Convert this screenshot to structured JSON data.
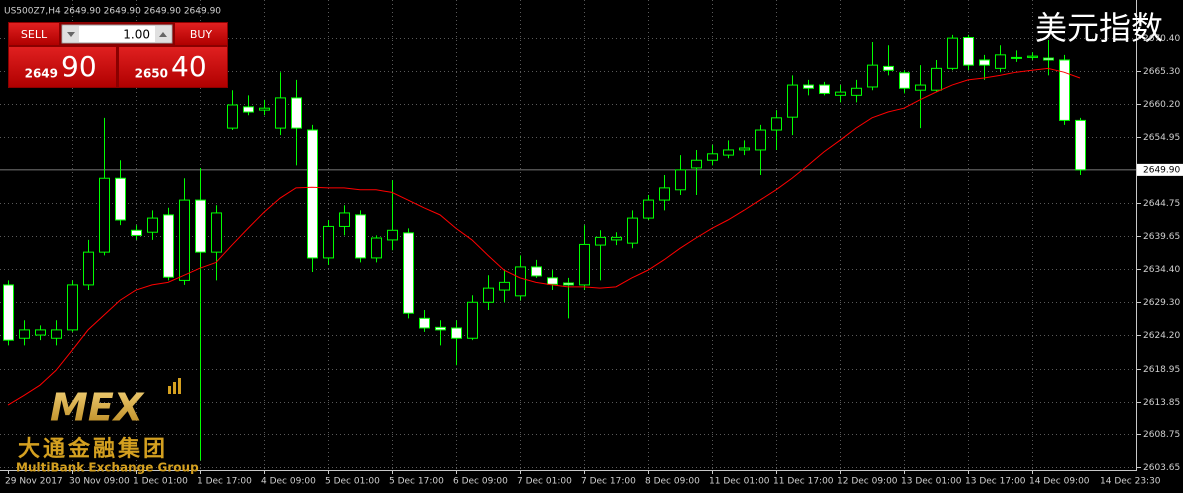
{
  "chart_data": {
    "type": "candlestick",
    "header": "US500Z7,H4  2649.90 2649.90 2649.90 2649.90",
    "title": "美元指数",
    "x": [
      "29 Nov 2017",
      null,
      null,
      null,
      "30 Nov 09:00",
      null,
      null,
      null,
      "1 Dec 01:00",
      null,
      null,
      null,
      "1 Dec 17:00",
      null,
      null,
      null,
      "4 Dec 09:00",
      null,
      null,
      null,
      "5 Dec 01:00",
      null,
      null,
      null,
      "5 Dec 17:00",
      null,
      null,
      null,
      "6 Dec 09:00",
      null,
      null,
      null,
      "7 Dec 01:00",
      null,
      null,
      null,
      "7 Dec 17:00",
      null,
      null,
      null,
      "8 Dec 09:00",
      null,
      null,
      null,
      "11 Dec 01:00",
      null,
      null,
      null,
      "11 Dec 17:00",
      null,
      null,
      null,
      "12 Dec 09:00",
      null,
      null,
      null,
      "13 Dec 01:00",
      null,
      null,
      null,
      "13 Dec 17:00",
      null,
      null,
      null,
      "14 Dec 09:00",
      null,
      null,
      null
    ],
    "current_time": "14 Dec 23:30",
    "open": [
      2632.0,
      2623.7,
      2624.2,
      2623.7,
      2625.0,
      2632.0,
      2637.1,
      2648.6,
      2640.5,
      2640.2,
      2642.9,
      2632.7,
      2645.2,
      2637.1,
      2656.4,
      2659.7,
      2659.2,
      2656.4,
      2661.1,
      2656.1,
      2636.2,
      2641.1,
      2642.9,
      2636.2,
      2639.0,
      2640.1,
      2626.8,
      2625.4,
      2625.3,
      2623.7,
      2629.3,
      2631.2,
      2630.3,
      2634.8,
      2633.1,
      2632.3,
      2632.0,
      2638.2,
      2639.0,
      2638.5,
      2642.4,
      2645.2,
      2646.8,
      2650.2,
      2651.4,
      2652.2,
      2653.0,
      2653.0,
      2656.1,
      2658.1,
      2663.1,
      2663.1,
      2661.5,
      2661.5,
      2662.8,
      2666.0,
      2665.0,
      2662.3,
      2662.3,
      2665.7,
      2670.5,
      2667.0,
      2665.7,
      2667.3,
      2667.4,
      2667.3,
      2667.0,
      2657.6
    ],
    "high": [
      2632.7,
      2626.5,
      2625.7,
      2626.5,
      2632.7,
      2639.0,
      2658.0,
      2651.4,
      2641.3,
      2643.6,
      2644.0,
      2648.6,
      2650.2,
      2644.4,
      2662.3,
      2661.5,
      2660.8,
      2665.1,
      2663.9,
      2656.9,
      2642.1,
      2644.4,
      2643.6,
      2639.7,
      2648.3,
      2640.8,
      2628.1,
      2626.5,
      2626.5,
      2630.4,
      2633.5,
      2634.3,
      2636.6,
      2635.9,
      2634.3,
      2633.1,
      2641.3,
      2640.5,
      2640.2,
      2643.6,
      2646.0,
      2649.1,
      2652.2,
      2653.0,
      2653.8,
      2654.5,
      2654.5,
      2656.9,
      2659.2,
      2664.6,
      2663.9,
      2663.6,
      2663.1,
      2663.9,
      2669.8,
      2669.3,
      2665.4,
      2666.2,
      2667.0,
      2670.9,
      2670.9,
      2667.8,
      2669.3,
      2668.5,
      2668.2,
      2670.1,
      2667.8,
      2658.0
    ],
    "low": [
      2622.6,
      2622.6,
      2623.4,
      2622.6,
      2624.7,
      2631.2,
      2636.6,
      2641.3,
      2639.0,
      2639.0,
      2632.7,
      2632.0,
      2604.7,
      2632.7,
      2656.1,
      2658.4,
      2658.4,
      2655.3,
      2650.6,
      2634.0,
      2635.1,
      2639.7,
      2635.5,
      2635.5,
      2637.4,
      2626.8,
      2624.7,
      2622.6,
      2619.5,
      2623.4,
      2628.1,
      2629.3,
      2629.6,
      2633.1,
      2631.2,
      2626.8,
      2631.2,
      2632.7,
      2638.2,
      2637.7,
      2642.1,
      2643.6,
      2646.0,
      2646.0,
      2650.6,
      2651.7,
      2652.2,
      2649.1,
      2653.0,
      2655.3,
      2661.5,
      2661.5,
      2660.4,
      2660.4,
      2662.3,
      2664.6,
      2661.8,
      2656.4,
      2662.0,
      2665.4,
      2665.4,
      2663.9,
      2665.1,
      2666.7,
      2667.0,
      2664.6,
      2656.9,
      2649.1
    ],
    "close": [
      2623.4,
      2625.0,
      2625.0,
      2625.0,
      2632.0,
      2637.1,
      2648.6,
      2642.1,
      2639.7,
      2642.4,
      2633.2,
      2645.2,
      2637.1,
      2643.2,
      2660.0,
      2658.9,
      2659.5,
      2661.1,
      2656.4,
      2636.2,
      2641.1,
      2643.2,
      2636.2,
      2639.3,
      2640.5,
      2627.6,
      2625.3,
      2625.0,
      2623.7,
      2629.3,
      2631.5,
      2632.4,
      2634.8,
      2633.4,
      2632.1,
      2632.0,
      2638.3,
      2639.4,
      2639.4,
      2642.4,
      2645.2,
      2647.1,
      2649.9,
      2651.4,
      2652.4,
      2653.0,
      2653.3,
      2656.1,
      2658.0,
      2663.1,
      2662.6,
      2661.8,
      2662.0,
      2662.6,
      2666.2,
      2665.4,
      2662.6,
      2663.1,
      2665.7,
      2670.4,
      2666.2,
      2666.2,
      2667.8,
      2667.4,
      2667.6,
      2667.0,
      2657.6,
      2649.9
    ],
    "up_color": "#000000",
    "down_color": "#ffffff",
    "wick_color": "#00ff00",
    "moving_average": {
      "color": "#ff0000",
      "values": [
        2613.3,
        2614.8,
        2616.4,
        2618.7,
        2621.8,
        2625.0,
        2627.3,
        2629.6,
        2631.2,
        2632.0,
        2632.4,
        2633.5,
        2634.6,
        2635.5,
        2638.2,
        2640.8,
        2643.3,
        2645.5,
        2647.1,
        2647.2,
        2647.1,
        2647.1,
        2646.8,
        2646.8,
        2646.4,
        2645.2,
        2644.0,
        2642.9,
        2640.8,
        2639.0,
        2636.6,
        2634.3,
        2633.1,
        2632.4,
        2632.0,
        2631.7,
        2631.7,
        2631.5,
        2631.7,
        2633.1,
        2634.3,
        2635.9,
        2637.7,
        2639.3,
        2640.8,
        2642.1,
        2643.6,
        2645.2,
        2646.8,
        2648.6,
        2650.6,
        2652.7,
        2654.5,
        2656.4,
        2658.0,
        2658.9,
        2659.5,
        2660.8,
        2662.0,
        2663.1,
        2663.9,
        2664.2,
        2664.6,
        2665.1,
        2665.4,
        2665.7,
        2665.1,
        2664.2
      ]
    },
    "current_price": {
      "value": 2649.9,
      "label": "2649.90"
    },
    "ylim": [
      2603.2,
      2675.4
    ],
    "yticks": [
      {
        "value": 2670.4,
        "label": "2670.40"
      },
      {
        "value": 2665.3,
        "label": "2665.30"
      },
      {
        "value": 2660.2,
        "label": "2660.20"
      },
      2654.95,
      2644.75,
      2639.65,
      {
        "value": 2634.4,
        "label": "2634.40"
      },
      {
        "value": 2629.3,
        "label": "2629.30"
      },
      {
        "value": 2624.2,
        "label": "2624.20"
      },
      2618.95,
      2613.85,
      2608.75,
      2603.65
    ],
    "grid": true
  },
  "trade_panel": {
    "sell": "SELL",
    "buy": "BUY",
    "lots": "1.00",
    "bid_big": "2649",
    "bid_small": "90",
    "ask_big": "2650",
    "ask_small": "40"
  },
  "logo": {
    "mark": "MEX",
    "name_cn": "大通金融集团",
    "name_en": "MultiBank Exchange Group"
  }
}
